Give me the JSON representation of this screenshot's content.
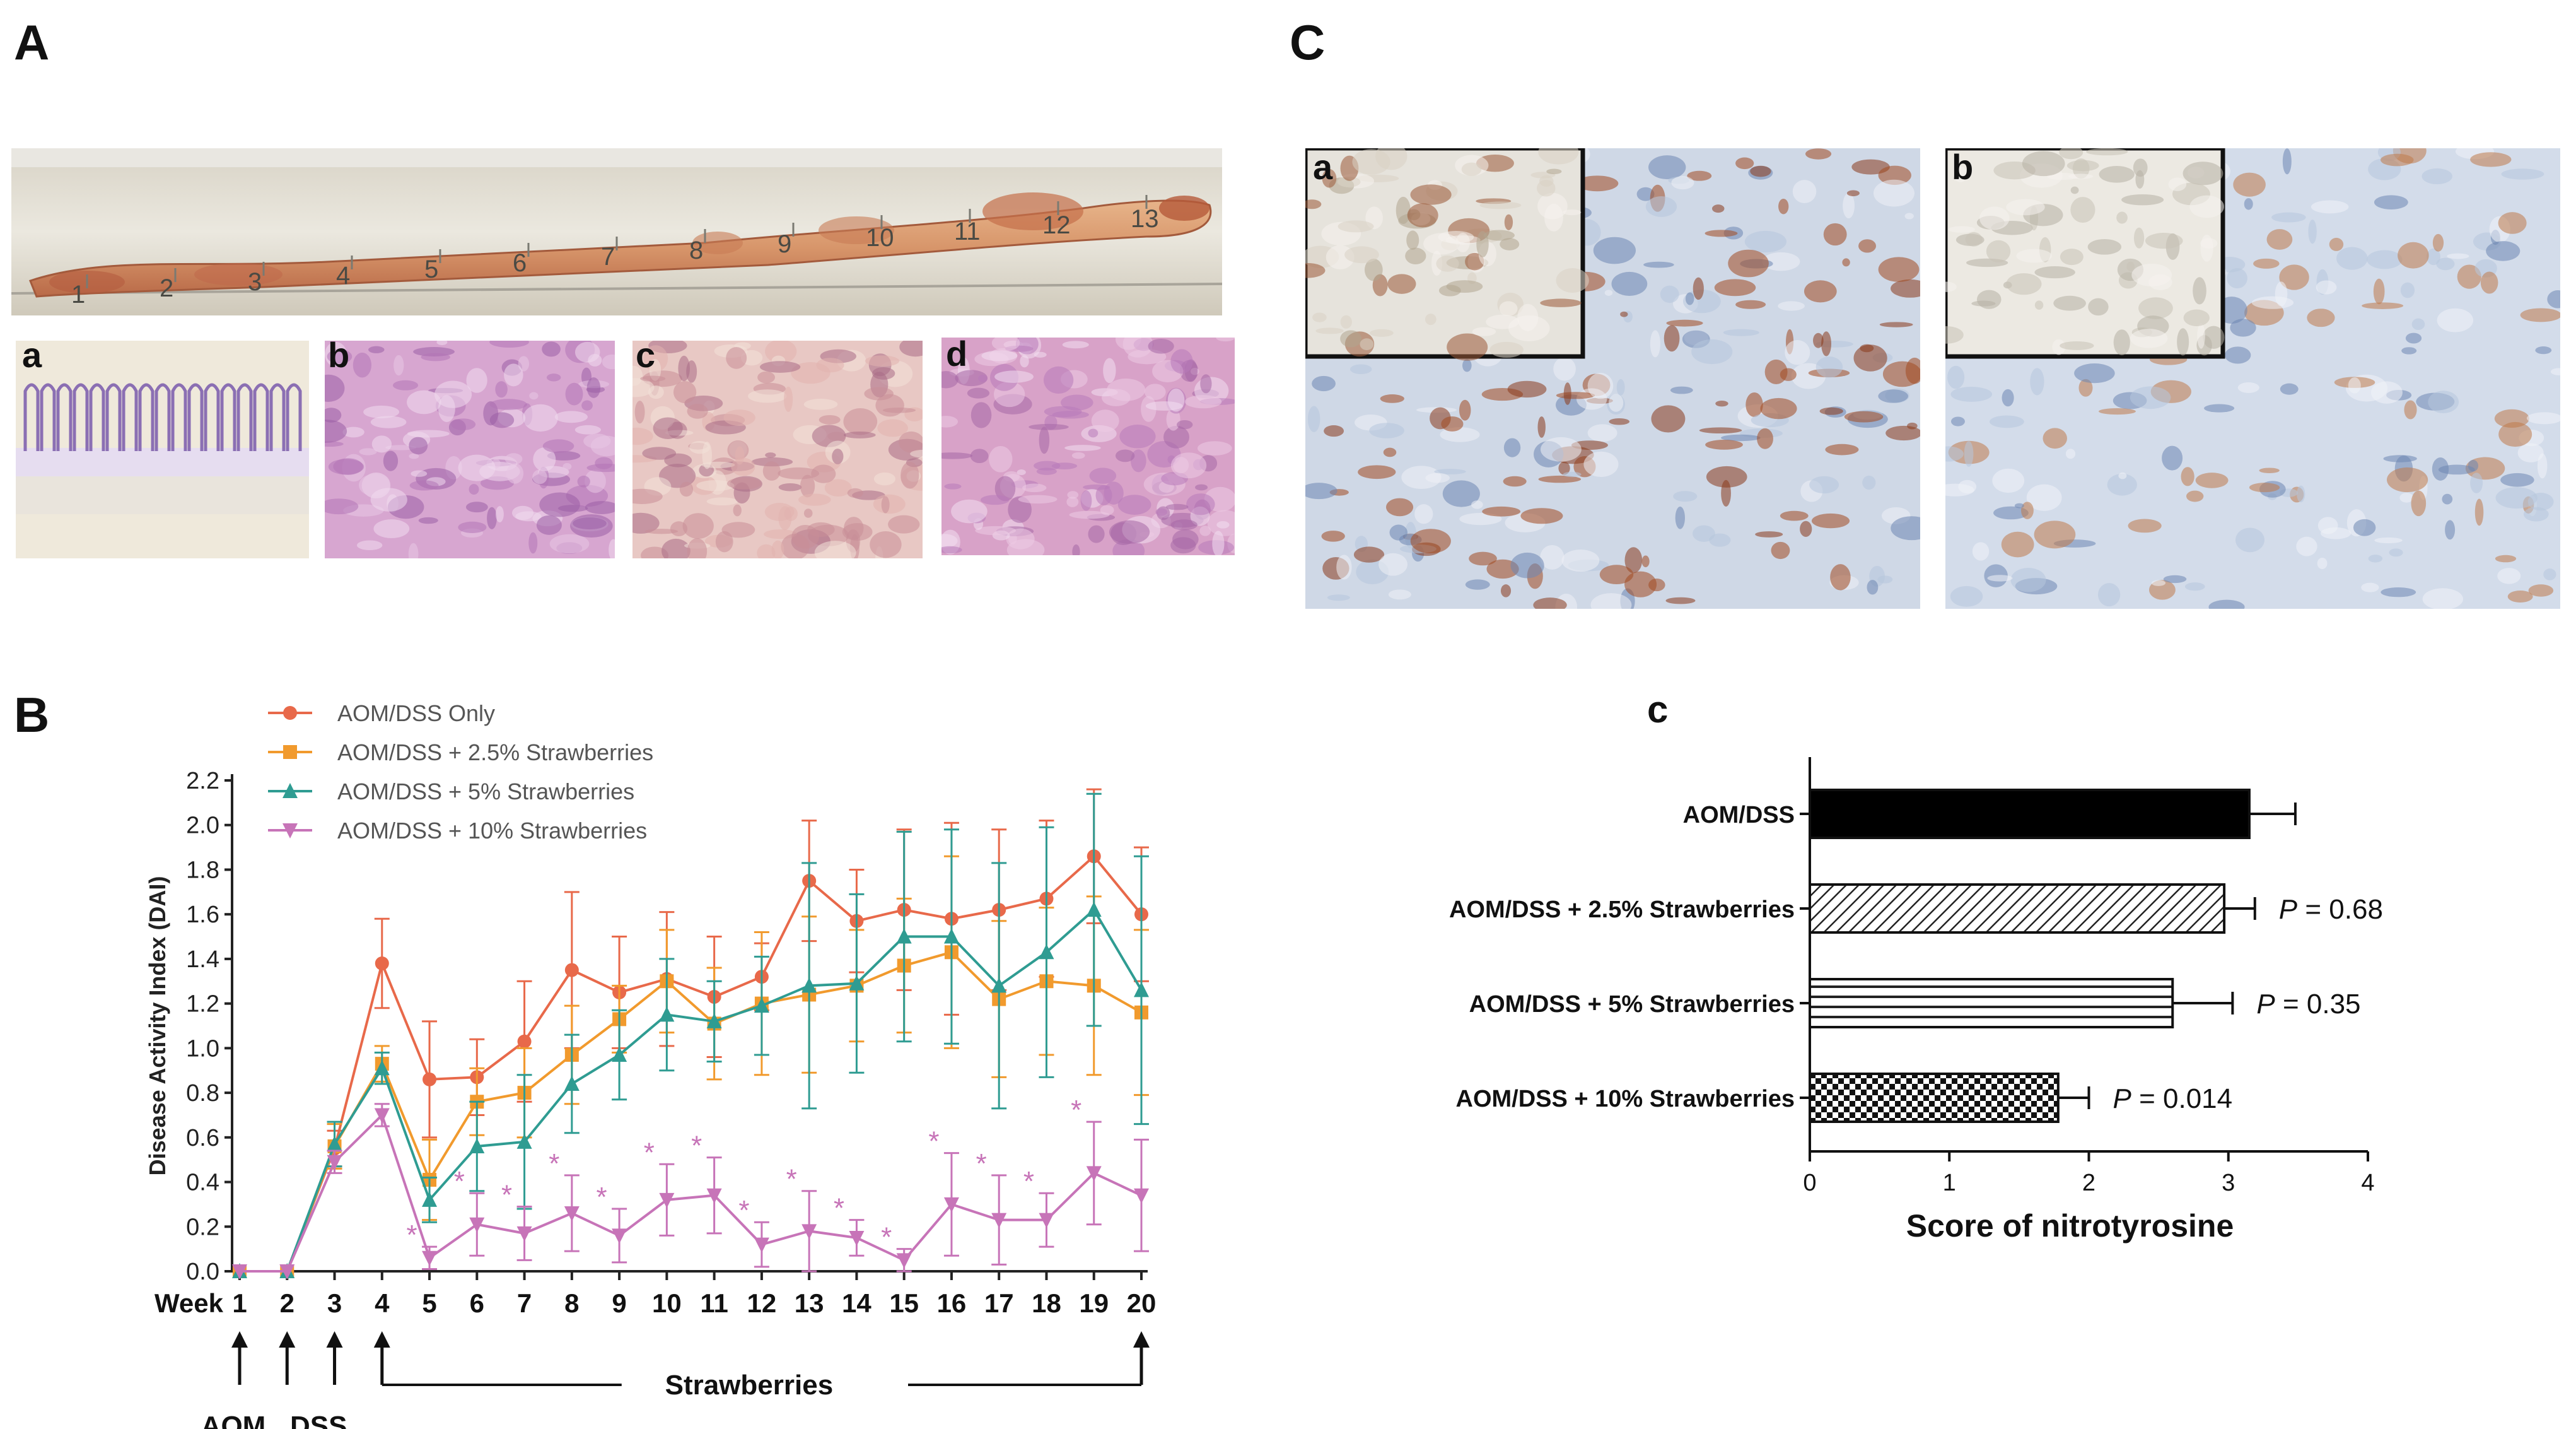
{
  "panels": {
    "A": {
      "letter": "A",
      "ruler_marks": [
        "1",
        "2",
        "3",
        "4",
        "5",
        "6",
        "7",
        "8",
        "9",
        "10",
        "11",
        "12",
        "13"
      ],
      "histology": [
        {
          "letter": "a"
        },
        {
          "letter": "b"
        },
        {
          "letter": "c"
        },
        {
          "letter": "d"
        }
      ]
    },
    "B": {
      "letter": "B",
      "week_label": "Week",
      "arrow_labels": {
        "aom": "AOM",
        "dss": "DSS",
        "strawberries": "Strawberries"
      },
      "significance_mark": "*"
    },
    "C": {
      "letter": "C",
      "ihc": [
        {
          "letter": "a"
        },
        {
          "letter": "b"
        }
      ],
      "sub_c_letter": "c"
    }
  },
  "chart_data": [
    {
      "type": "line",
      "panel": "B",
      "ylabel": "Disease Activity Index (DAI)",
      "xlabel": "Week",
      "x": [
        1,
        2,
        3,
        4,
        5,
        6,
        7,
        8,
        9,
        10,
        11,
        12,
        13,
        14,
        15,
        16,
        17,
        18,
        19,
        20
      ],
      "ylim": [
        0.0,
        2.2
      ],
      "yticks": [
        "0.0",
        "0.2",
        "0.4",
        "0.6",
        "0.8",
        "1.0",
        "1.2",
        "1.4",
        "1.6",
        "1.8",
        "2.0",
        "2.2"
      ],
      "xticks": [
        "1",
        "2",
        "3",
        "4",
        "5",
        "6",
        "7",
        "8",
        "9",
        "10",
        "11",
        "12",
        "13",
        "14",
        "15",
        "16",
        "17",
        "18",
        "19",
        "20"
      ],
      "legend_position": "top-left",
      "series": [
        {
          "name": "AOM/DSS Only",
          "color": "#e8694a",
          "marker": "circle",
          "values": [
            0,
            0,
            0.55,
            1.38,
            0.86,
            0.87,
            1.03,
            1.35,
            1.25,
            1.31,
            1.23,
            1.32,
            1.75,
            1.57,
            1.62,
            1.58,
            1.62,
            1.67,
            1.86,
            1.6
          ],
          "errors": [
            0,
            0,
            0.08,
            0.2,
            0.26,
            0.17,
            0.27,
            0.35,
            0.25,
            0.3,
            0.27,
            0.15,
            0.27,
            0.23,
            0.36,
            0.43,
            0.36,
            0.35,
            0.3,
            0.3
          ]
        },
        {
          "name": "AOM/DSS + 2.5% Strawberries",
          "color": "#f19a2d",
          "marker": "square",
          "values": [
            0,
            0,
            0.56,
            0.93,
            0.41,
            0.76,
            0.8,
            0.97,
            1.13,
            1.3,
            1.11,
            1.2,
            1.24,
            1.28,
            1.37,
            1.43,
            1.22,
            1.3,
            1.28,
            1.16
          ],
          "errors": [
            0,
            0,
            0.1,
            0.08,
            0.18,
            0.15,
            0.2,
            0.22,
            0.15,
            0.23,
            0.25,
            0.32,
            0.35,
            0.25,
            0.3,
            0.43,
            0.35,
            0.33,
            0.4,
            0.37
          ]
        },
        {
          "name": "AOM/DSS + 5% Strawberries",
          "color": "#2f9c92",
          "marker": "triangle-up",
          "values": [
            0,
            0,
            0.57,
            0.91,
            0.32,
            0.56,
            0.58,
            0.84,
            0.97,
            1.15,
            1.12,
            1.19,
            1.28,
            1.29,
            1.5,
            1.5,
            1.28,
            1.43,
            1.62,
            1.26
          ],
          "errors": [
            0,
            0,
            0.1,
            0.07,
            0.1,
            0.2,
            0.3,
            0.22,
            0.2,
            0.25,
            0.18,
            0.22,
            0.55,
            0.4,
            0.47,
            0.48,
            0.55,
            0.56,
            0.52,
            0.6
          ]
        },
        {
          "name": "AOM/DSS + 10% Strawberries",
          "color": "#c774b8",
          "marker": "triangle-down",
          "values": [
            0,
            0,
            0.49,
            0.7,
            0.06,
            0.21,
            0.17,
            0.26,
            0.16,
            0.32,
            0.34,
            0.12,
            0.18,
            0.15,
            0.05,
            0.3,
            0.23,
            0.23,
            0.44,
            0.34
          ],
          "errors": [
            0,
            0,
            0.05,
            0.05,
            0.05,
            0.14,
            0.12,
            0.17,
            0.12,
            0.16,
            0.17,
            0.1,
            0.18,
            0.08,
            0.05,
            0.23,
            0.2,
            0.12,
            0.23,
            0.25
          ]
        }
      ],
      "significant_weeks": [
        5,
        6,
        7,
        8,
        9,
        10,
        11,
        12,
        13,
        14,
        15,
        16,
        17,
        18,
        19
      ]
    },
    {
      "type": "bar",
      "panel": "C-c",
      "orientation": "horizontal",
      "xlabel": "Score of nitrotyrosine",
      "xlim": [
        0,
        4
      ],
      "xticks": [
        "0",
        "1",
        "2",
        "3",
        "4"
      ],
      "categories": [
        "AOM/DSS",
        "AOM/DSS + 2.5% Strawberries",
        "AOM/DSS + 5% Strawberries",
        "AOM/DSS + 10% Strawberries"
      ],
      "values": [
        3.15,
        2.97,
        2.6,
        1.78
      ],
      "errors": [
        0.33,
        0.22,
        0.43,
        0.22
      ],
      "patterns": [
        "solid",
        "diagonal",
        "horizontal",
        "checker"
      ],
      "p_values": [
        "",
        "0.68",
        "0.35",
        "0.014"
      ],
      "p_prefix": "P",
      "p_equals": " = "
    }
  ]
}
